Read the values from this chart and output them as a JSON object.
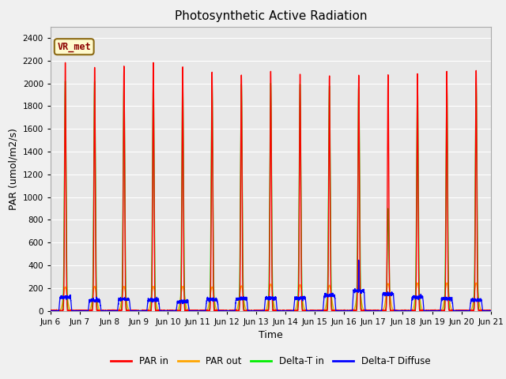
{
  "title": "Photosynthetic Active Radiation",
  "ylabel": "PAR (umol/m2/s)",
  "xlabel": "Time",
  "ylim": [
    0,
    2500
  ],
  "yticks": [
    0,
    200,
    400,
    600,
    800,
    1000,
    1200,
    1400,
    1600,
    1800,
    2000,
    2200,
    2400
  ],
  "xtick_labels": [
    "Jun 6",
    "Jun 7",
    "Jun 8",
    "Jun 9",
    "Jun 10",
    "Jun 11",
    "Jun 12",
    "Jun 13",
    "Jun 14",
    "Jun 15",
    "Jun 16",
    "Jun 17",
    "Jun 18",
    "Jun 19",
    "Jun 20",
    "Jun 21"
  ],
  "legend_label": "VR_met",
  "series_colors": {
    "PAR_in": "#ff0000",
    "PAR_out": "#ffa500",
    "Delta_T_in": "#00ee00",
    "Delta_T_Diffuse": "#0000ff"
  },
  "legend_entries": [
    "PAR in",
    "PAR out",
    "Delta-T in",
    "Delta-T Diffuse"
  ],
  "n_days": 15,
  "plot_bg_color": "#e8e8e8",
  "fig_bg_color": "#f0f0f0",
  "grid_color": "#ffffff",
  "PAR_in_peaks": [
    2185,
    2145,
    2150,
    2185,
    2145,
    2105,
    2080,
    2110,
    2090,
    2075,
    2070,
    2080,
    2080,
    2100,
    2115
  ],
  "Delta_T_peaks": [
    2020,
    2020,
    2005,
    2020,
    2010,
    2005,
    1995,
    2005,
    1995,
    1980,
    1970,
    900,
    2000,
    1990,
    2005
  ],
  "PAR_out_peaks": [
    210,
    215,
    215,
    215,
    215,
    210,
    220,
    235,
    230,
    225,
    225,
    240,
    245,
    245,
    245
  ],
  "blue_flat_vals": [
    120,
    90,
    100,
    95,
    80,
    100,
    105,
    110,
    110,
    135,
    175,
    145,
    120,
    105,
    95
  ],
  "blue_spike_day": 10,
  "blue_spike_val": 450,
  "PAR_in_sigma": 0.022,
  "Delta_T_sigma": 0.028,
  "PAR_out_sigma": 0.065
}
